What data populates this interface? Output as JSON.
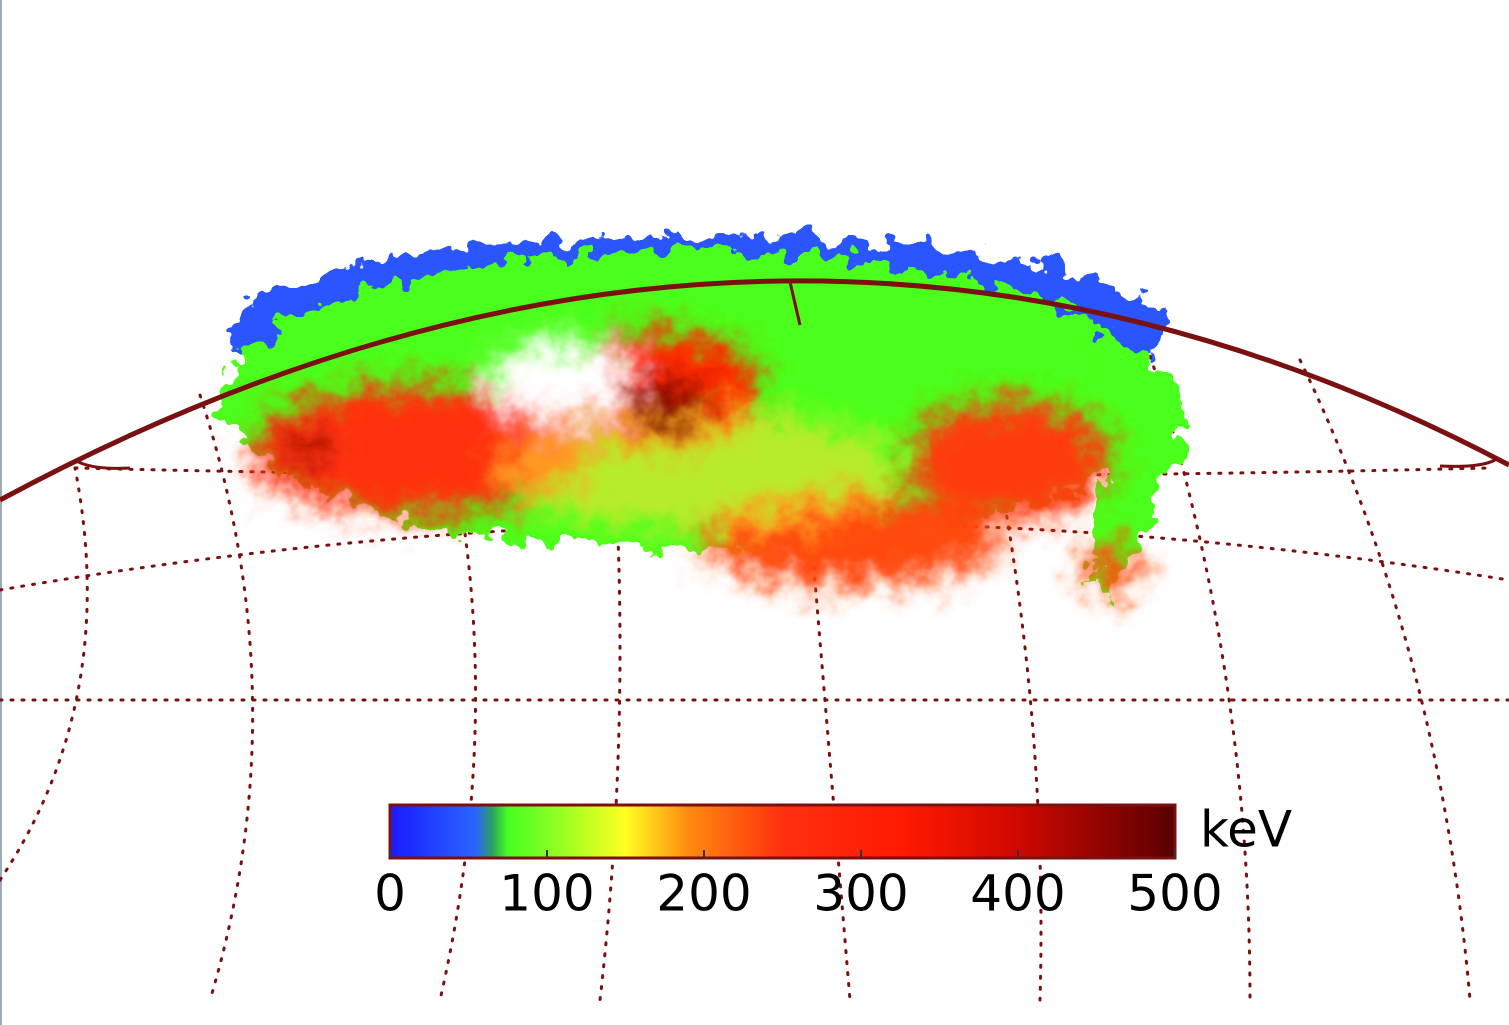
{
  "colorbar": {
    "label": "keV",
    "lim": [
      0,
      500
    ],
    "ticks": [
      0,
      100,
      200,
      300,
      400,
      500
    ]
  }
}
